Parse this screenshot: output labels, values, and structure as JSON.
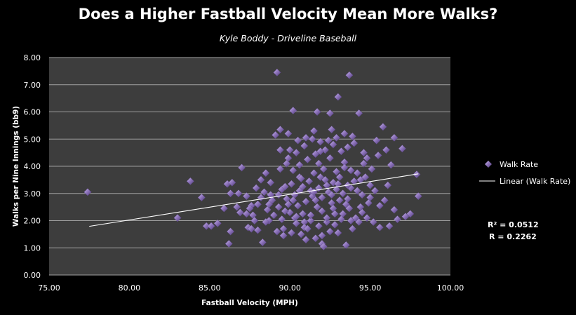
{
  "chart_data": {
    "type": "scatter",
    "title": "Does a Higher Fastball Velocity Mean More Walks?",
    "subtitle": "Kyle Boddy - Driveline Baseball",
    "xlabel": "Fastball Velocity (MPH)",
    "ylabel": "Walks per Nine Innings (bb9)",
    "xlim": [
      75,
      100
    ],
    "ylim": [
      0,
      8
    ],
    "x_ticks": [
      "75.00",
      "80.00",
      "85.00",
      "90.00",
      "95.00",
      "100.00"
    ],
    "y_ticks": [
      "0.00",
      "1.00",
      "2.00",
      "3.00",
      "4.00",
      "5.00",
      "6.00",
      "7.00",
      "8.00"
    ],
    "grid": true,
    "legend_position": "right",
    "series": [
      {
        "name": "Walk Rate",
        "marker": "diamond",
        "color": "#8a70b8",
        "points": [
          [
            77.4,
            3.05
          ],
          [
            83.0,
            2.1
          ],
          [
            83.8,
            3.45
          ],
          [
            84.5,
            2.85
          ],
          [
            84.8,
            1.8
          ],
          [
            85.1,
            1.8
          ],
          [
            85.5,
            1.9
          ],
          [
            85.9,
            2.45
          ],
          [
            86.1,
            3.35
          ],
          [
            86.2,
            1.15
          ],
          [
            86.3,
            1.6
          ],
          [
            86.3,
            3.0
          ],
          [
            86.4,
            3.4
          ],
          [
            86.7,
            2.5
          ],
          [
            86.8,
            3.0
          ],
          [
            87.0,
            3.95
          ],
          [
            87.3,
            2.25
          ],
          [
            87.4,
            1.75
          ],
          [
            87.6,
            1.7
          ],
          [
            87.7,
            2.2
          ],
          [
            88.0,
            2.6
          ],
          [
            88.2,
            3.5
          ],
          [
            88.3,
            1.2
          ],
          [
            88.5,
            3.75
          ],
          [
            88.7,
            2.0
          ],
          [
            88.8,
            2.95
          ],
          [
            89.1,
            5.15
          ],
          [
            89.2,
            7.45
          ],
          [
            89.4,
            5.35
          ],
          [
            89.4,
            3.9
          ],
          [
            89.6,
            1.45
          ],
          [
            89.8,
            2.8
          ],
          [
            90.0,
            4.6
          ],
          [
            90.2,
            6.05
          ],
          [
            90.3,
            2.1
          ],
          [
            90.6,
            3.6
          ],
          [
            90.9,
            1.95
          ],
          [
            91.0,
            5.05
          ],
          [
            91.3,
            3.1
          ],
          [
            91.5,
            5.3
          ],
          [
            91.7,
            6.0
          ],
          [
            91.8,
            4.1
          ],
          [
            92.0,
            1.15
          ],
          [
            92.1,
            1.05
          ],
          [
            92.3,
            3.3
          ],
          [
            92.5,
            5.95
          ],
          [
            92.6,
            5.35
          ],
          [
            92.8,
            2.25
          ],
          [
            93.0,
            6.55
          ],
          [
            93.2,
            2.05
          ],
          [
            93.4,
            4.15
          ],
          [
            93.5,
            1.1
          ],
          [
            93.7,
            7.35
          ],
          [
            93.8,
            3.2
          ],
          [
            94.1,
            2.1
          ],
          [
            94.3,
            5.95
          ],
          [
            94.5,
            2.3
          ],
          [
            94.8,
            4.3
          ],
          [
            95.0,
            2.85
          ],
          [
            95.2,
            1.95
          ],
          [
            95.4,
            4.95
          ],
          [
            95.6,
            1.75
          ],
          [
            95.8,
            5.45
          ],
          [
            96.0,
            4.6
          ],
          [
            96.1,
            3.3
          ],
          [
            96.2,
            1.8
          ],
          [
            96.3,
            4.05
          ],
          [
            96.5,
            5.05
          ],
          [
            96.7,
            2.05
          ],
          [
            97.0,
            4.65
          ],
          [
            97.2,
            2.15
          ],
          [
            97.5,
            2.25
          ],
          [
            97.9,
            3.7
          ],
          [
            98.0,
            2.9
          ],
          [
            95.6,
            2.55
          ],
          [
            95.9,
            2.75
          ],
          [
            96.5,
            2.4
          ],
          [
            90.5,
            2.55
          ],
          [
            91.0,
            2.7
          ],
          [
            91.4,
            2.9
          ],
          [
            92.0,
            2.85
          ],
          [
            92.4,
            3.05
          ],
          [
            92.9,
            3.15
          ],
          [
            93.3,
            3.0
          ],
          [
            89.9,
            2.6
          ],
          [
            90.3,
            2.95
          ],
          [
            90.8,
            3.25
          ],
          [
            91.2,
            3.45
          ],
          [
            91.8,
            3.2
          ],
          [
            92.2,
            3.5
          ],
          [
            92.7,
            3.4
          ],
          [
            93.1,
            3.6
          ],
          [
            93.6,
            3.3
          ],
          [
            94.0,
            3.45
          ],
          [
            89.5,
            3.15
          ],
          [
            90.1,
            3.35
          ],
          [
            90.7,
            3.55
          ],
          [
            91.5,
            3.75
          ],
          [
            92.1,
            3.9
          ],
          [
            92.9,
            3.8
          ],
          [
            93.4,
            3.95
          ],
          [
            94.2,
            3.75
          ],
          [
            88.9,
            2.75
          ],
          [
            89.3,
            2.95
          ],
          [
            89.7,
            3.25
          ],
          [
            88.6,
            2.4
          ],
          [
            89.0,
            2.2
          ],
          [
            89.5,
            2.05
          ],
          [
            90.0,
            2.3
          ],
          [
            90.4,
            1.9
          ],
          [
            90.9,
            1.75
          ],
          [
            91.3,
            2.0
          ],
          [
            91.8,
            1.8
          ],
          [
            92.3,
            1.95
          ],
          [
            92.8,
            1.85
          ],
          [
            93.3,
            2.25
          ],
          [
            93.8,
            2.0
          ],
          [
            94.3,
            1.95
          ],
          [
            94.8,
            2.1
          ],
          [
            91.1,
            4.25
          ],
          [
            91.6,
            4.45
          ],
          [
            92.2,
            4.6
          ],
          [
            92.7,
            4.8
          ],
          [
            93.2,
            4.55
          ],
          [
            93.6,
            4.7
          ],
          [
            94.0,
            4.85
          ],
          [
            94.6,
            4.5
          ],
          [
            90.6,
            4.05
          ],
          [
            90.2,
            3.85
          ],
          [
            89.8,
            4.1
          ],
          [
            88.8,
            3.4
          ],
          [
            88.4,
            3.05
          ],
          [
            88.2,
            2.85
          ],
          [
            87.9,
            3.2
          ],
          [
            87.6,
            2.55
          ],
          [
            87.3,
            2.9
          ],
          [
            87.8,
            2.0
          ],
          [
            88.0,
            1.65
          ],
          [
            90.7,
            1.5
          ],
          [
            91.6,
            1.35
          ],
          [
            92.5,
            1.6
          ],
          [
            93.9,
            1.7
          ],
          [
            94.4,
            2.5
          ],
          [
            94.9,
            2.65
          ],
          [
            95.3,
            3.1
          ],
          [
            94.7,
            3.6
          ],
          [
            95.1,
            3.9
          ],
          [
            94.6,
            4.1
          ],
          [
            95.5,
            4.4
          ],
          [
            93.9,
            5.1
          ],
          [
            93.4,
            5.2
          ],
          [
            92.9,
            5.05
          ],
          [
            92.4,
            4.95
          ],
          [
            91.9,
            4.9
          ],
          [
            91.4,
            5.0
          ],
          [
            90.9,
            4.75
          ],
          [
            90.4,
            4.5
          ],
          [
            89.9,
            4.3
          ],
          [
            89.4,
            4.6
          ],
          [
            90.8,
            2.25
          ],
          [
            91.7,
            2.5
          ],
          [
            92.6,
            2.65
          ],
          [
            93.5,
            2.6
          ],
          [
            94.5,
            2.95
          ],
          [
            92.0,
            2.35
          ],
          [
            91.3,
            2.2
          ],
          [
            89.6,
            1.7
          ],
          [
            89.2,
            1.6
          ],
          [
            88.5,
            1.95
          ],
          [
            90.1,
            1.55
          ],
          [
            91.0,
            1.3
          ],
          [
            93.0,
            1.55
          ],
          [
            93.7,
            2.45
          ],
          [
            94.2,
            3.1
          ],
          [
            93.8,
            3.85
          ],
          [
            92.5,
            4.3
          ],
          [
            91.9,
            4.55
          ],
          [
            90.5,
            4.95
          ],
          [
            89.9,
            5.2
          ],
          [
            91.5,
            3.05
          ],
          [
            92.6,
            2.95
          ],
          [
            93.1,
            2.75
          ],
          [
            90.2,
            2.75
          ],
          [
            89.3,
            2.5
          ],
          [
            88.7,
            2.6
          ],
          [
            86.9,
            2.3
          ],
          [
            87.5,
            2.45
          ],
          [
            90.6,
            3.1
          ],
          [
            91.9,
            3.6
          ],
          [
            93.0,
            3.35
          ],
          [
            94.4,
            3.5
          ],
          [
            95.0,
            3.3
          ],
          [
            92.3,
            2.1
          ],
          [
            91.1,
            1.7
          ],
          [
            92.0,
            1.45
          ],
          [
            90.4,
            2.15
          ],
          [
            89.7,
            2.35
          ],
          [
            91.6,
            2.75
          ],
          [
            92.7,
            2.45
          ],
          [
            93.6,
            2.8
          ]
        ]
      },
      {
        "name": "Linear (Walk Rate)",
        "type": "line",
        "color": "#ffffff",
        "points": [
          [
            77.5,
            1.79
          ],
          [
            98.0,
            3.72
          ]
        ]
      }
    ],
    "annotations": [
      "R² = 0.0512",
      "R = 0.2262"
    ]
  },
  "colors": {
    "background": "#000000",
    "plot_area": "#3d3d3d",
    "gridline": "#a0a0a0",
    "marker": "#8a70b8",
    "trendline": "#ffffff"
  }
}
